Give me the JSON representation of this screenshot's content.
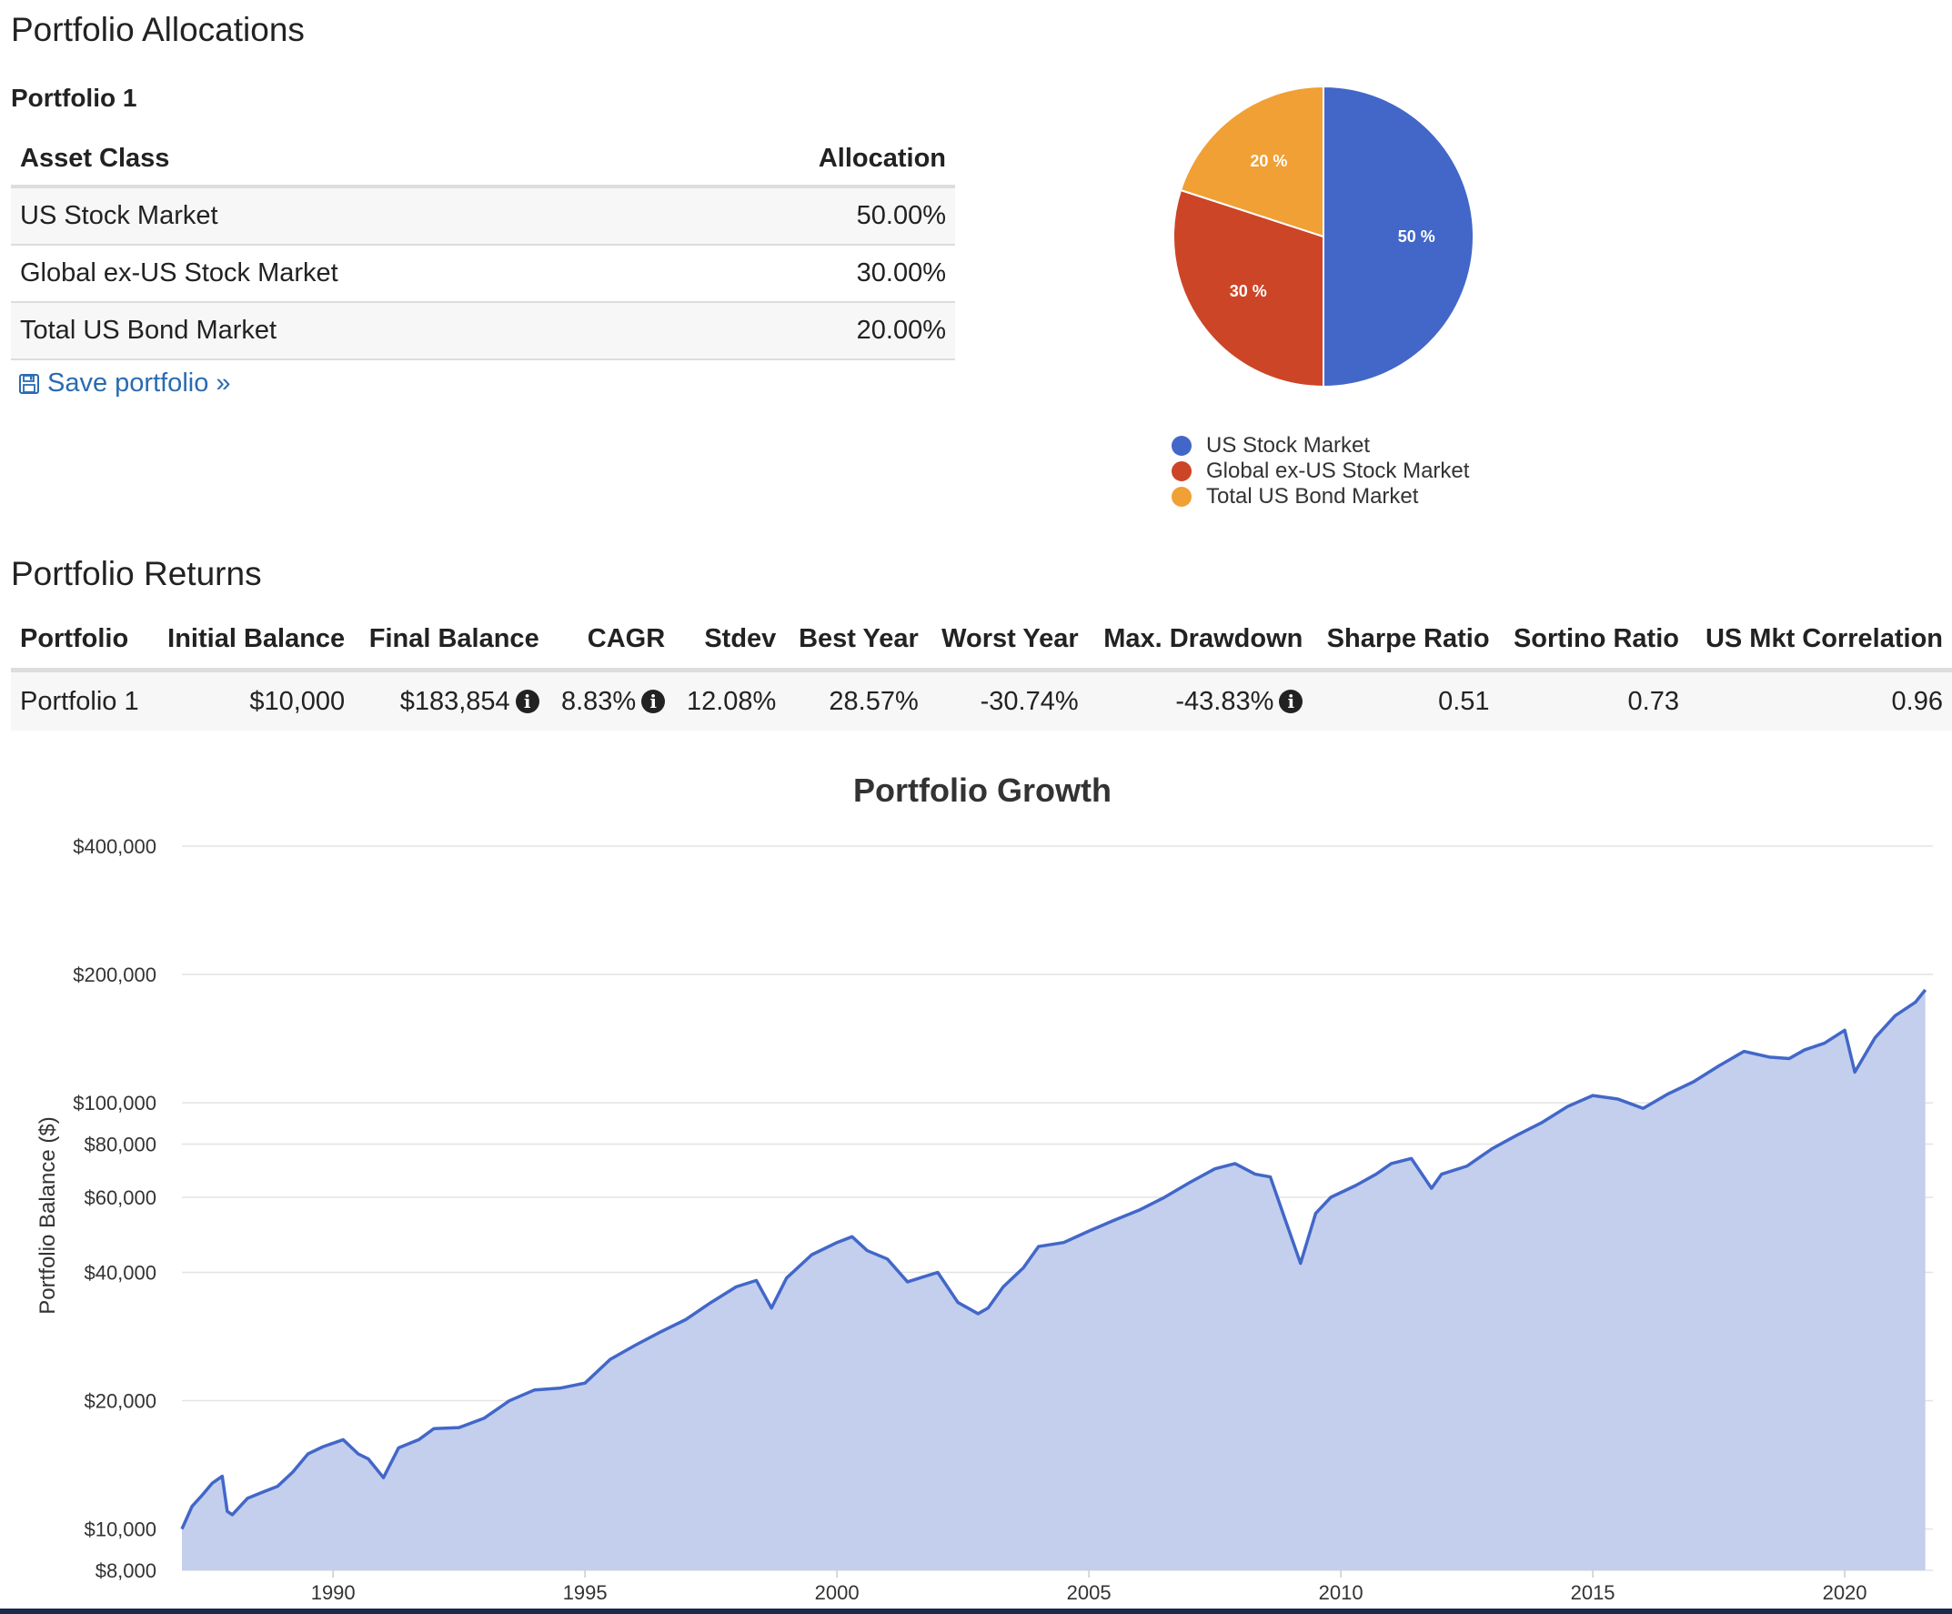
{
  "allocations": {
    "title": "Portfolio Allocations",
    "portfolio_name": "Portfolio 1",
    "headers": {
      "asset": "Asset Class",
      "allocation": "Allocation"
    },
    "rows": [
      {
        "asset": "US Stock Market",
        "allocation": "50.00%"
      },
      {
        "asset": "Global ex-US Stock Market",
        "allocation": "30.00%"
      },
      {
        "asset": "Total US Bond Market",
        "allocation": "20.00%"
      }
    ],
    "save_link": "Save portfolio »"
  },
  "returns": {
    "title": "Portfolio Returns",
    "headers": [
      "Portfolio",
      "Initial Balance",
      "Final Balance",
      "CAGR",
      "Stdev",
      "Best Year",
      "Worst Year",
      "Max. Drawdown",
      "Sharpe Ratio",
      "Sortino Ratio",
      "US Mkt Correlation"
    ],
    "row": {
      "portfolio": "Portfolio 1",
      "initial_balance": "$10,000",
      "final_balance": "$183,854",
      "cagr": "8.83%",
      "stdev": "12.08%",
      "best_year": "28.57%",
      "worst_year": "-30.74%",
      "max_drawdown": "-43.83%",
      "sharpe": "0.51",
      "sortino": "0.73",
      "us_mkt_corr": "0.96"
    },
    "info_icon": "info-icon"
  },
  "chart_data": [
    {
      "type": "pie",
      "labels": [
        "US Stock Market",
        "Global ex-US Stock Market",
        "Total US Bond Market"
      ],
      "values": [
        50,
        30,
        20
      ],
      "data_labels": [
        "50 %",
        "30 %",
        "20 %"
      ],
      "colors": [
        "#4267c8",
        "#cc4527",
        "#f0a034"
      ],
      "legend_placement": "bottom"
    },
    {
      "type": "area",
      "title": "Portfolio Growth",
      "ylabel": "Portfolio Balance ($)",
      "xlabel": "",
      "yscale": "log",
      "ylim": [
        8000,
        400000
      ],
      "yticks": [
        8000,
        10000,
        20000,
        40000,
        60000,
        80000,
        100000,
        200000,
        400000
      ],
      "ytick_labels": [
        "$8,000",
        "$10,000",
        "$20,000",
        "$40,000",
        "$60,000",
        "$80,000",
        "$100,000",
        "$200,000",
        "$400,000"
      ],
      "xlim": [
        1987.0,
        2021.75
      ],
      "xticks": [
        1990,
        1995,
        2000,
        2005,
        2010,
        2015,
        2020
      ],
      "xtick_labels": [
        "1990",
        "1995",
        "2000",
        "2005",
        "2010",
        "2015",
        "2020"
      ],
      "grid": true,
      "line_color": "#4267c8",
      "fill_color": "#c4cfee",
      "series": [
        {
          "x": [
            1987.0,
            1987.2,
            1987.4,
            1987.6,
            1987.8,
            1987.9,
            1988.0,
            1988.3,
            1988.6,
            1988.9,
            1989.2,
            1989.5,
            1989.8,
            1990.2,
            1990.5,
            1990.7,
            1991.0,
            1991.3,
            1991.7,
            1992.0,
            1992.5,
            1993.0,
            1993.5,
            1994.0,
            1994.5,
            1995.0,
            1995.5,
            1996.0,
            1996.5,
            1997.0,
            1997.5,
            1998.0,
            1998.4,
            1998.7,
            1999.0,
            1999.5,
            2000.0,
            2000.3,
            2000.6,
            2001.0,
            2001.4,
            2001.7,
            2002.0,
            2002.4,
            2002.8,
            2003.0,
            2003.3,
            2003.7,
            2004.0,
            2004.5,
            2005.0,
            2005.5,
            2006.0,
            2006.5,
            2007.0,
            2007.5,
            2007.9,
            2008.3,
            2008.6,
            2008.9,
            2009.2,
            2009.5,
            2009.8,
            2010.3,
            2010.7,
            2011.0,
            2011.4,
            2011.8,
            2012.0,
            2012.5,
            2013.0,
            2013.5,
            2014.0,
            2014.5,
            2015.0,
            2015.5,
            2016.0,
            2016.5,
            2017.0,
            2017.5,
            2018.0,
            2018.5,
            2018.9,
            2019.2,
            2019.6,
            2020.0,
            2020.2,
            2020.6,
            2021.0,
            2021.4,
            2021.6
          ],
          "y": [
            10000,
            11300,
            12000,
            12800,
            13300,
            11000,
            10800,
            11800,
            12200,
            12600,
            13600,
            15000,
            15600,
            16200,
            15000,
            14600,
            13200,
            15500,
            16200,
            17200,
            17300,
            18200,
            20000,
            21200,
            21400,
            22000,
            25000,
            27000,
            29000,
            31000,
            34000,
            37000,
            38300,
            33000,
            38800,
            44000,
            47000,
            48500,
            45000,
            43000,
            38000,
            39000,
            40000,
            34000,
            32000,
            33000,
            37000,
            41000,
            46000,
            47000,
            50000,
            53000,
            56000,
            60000,
            65000,
            70000,
            72000,
            68000,
            67000,
            53000,
            42000,
            55000,
            60000,
            64000,
            68000,
            72000,
            74000,
            63000,
            68000,
            71000,
            78000,
            84000,
            90000,
            98000,
            104000,
            102000,
            97000,
            105000,
            112000,
            122000,
            132000,
            128000,
            127000,
            133000,
            138000,
            148000,
            118000,
            142000,
            160000,
            172000,
            184000
          ]
        }
      ]
    }
  ]
}
